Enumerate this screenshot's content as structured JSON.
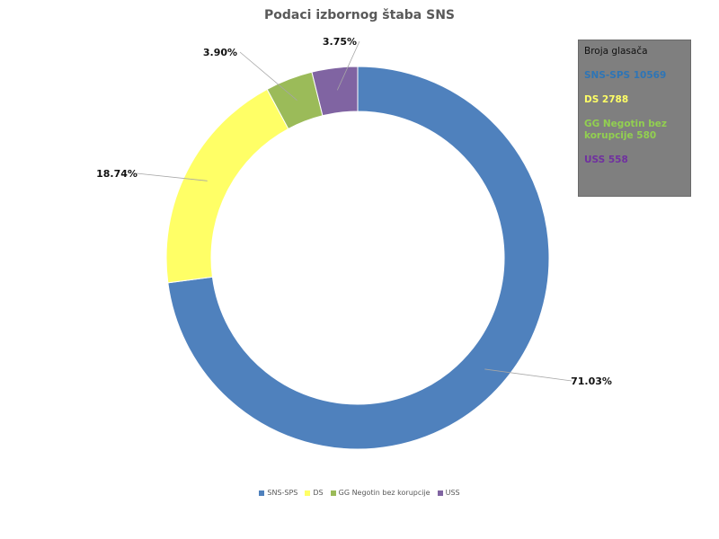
{
  "chart_data": {
    "type": "pie",
    "variant": "doughnut",
    "title": "Podaci izbornog štaba SNS",
    "categories": [
      "SNS-SPS",
      "DS",
      "GG Negotin bez korupcije",
      "USS"
    ],
    "values": [
      10569,
      2788,
      580,
      558
    ],
    "percent_labels": [
      "71.03%",
      "18.74%",
      "3.90%",
      "3.75%"
    ],
    "colors": [
      "#4f81bd",
      "#ffff66",
      "#9bbb59",
      "#8064a2"
    ],
    "legend_position": "bottom"
  },
  "infobox": {
    "header": "Broja glasača",
    "lines": [
      {
        "text": "SNS-SPS 10569",
        "color": "#2e75b6"
      },
      {
        "text": "DS 2788",
        "color": "#ffff66"
      },
      {
        "text": "GG Negotin bez korupcije  580",
        "color": "#92d050"
      },
      {
        "text": "USS 558",
        "color": "#7030a0"
      }
    ]
  }
}
